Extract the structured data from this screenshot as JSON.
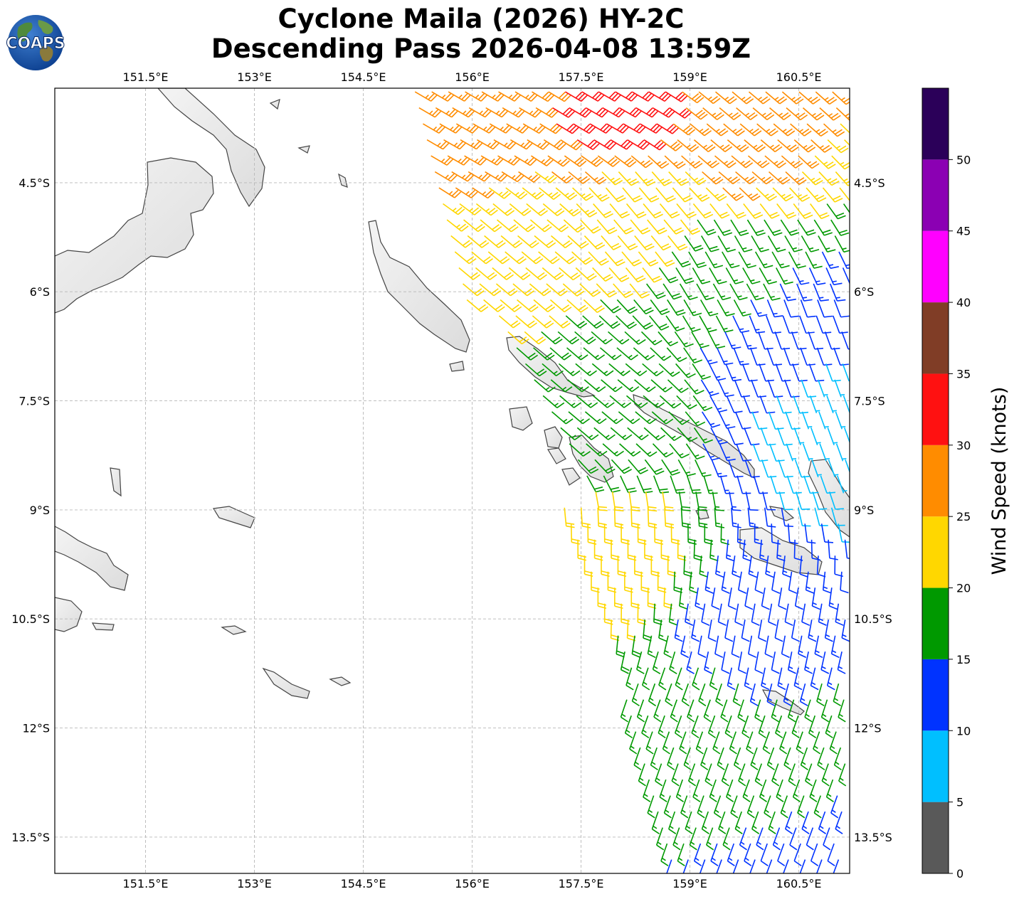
{
  "title": {
    "line1": "Cyclone Maila (2026) HY-2C",
    "line2": "Descending Pass 2026-04-08 13:59Z"
  },
  "logo": {
    "text": "COAPS",
    "icon": "earth-globe-logo"
  },
  "map": {
    "lon_range": [
      150.25,
      161.2
    ],
    "lat_range": [
      -14.0,
      -3.2
    ],
    "lon_ticks": [
      "151.5°E",
      "153°E",
      "154.5°E",
      "156°E",
      "157.5°E",
      "159°E",
      "160.5°E"
    ],
    "lon_tick_values": [
      151.5,
      153,
      154.5,
      156,
      157.5,
      159,
      160.5
    ],
    "lat_ticks": [
      "4.5°S",
      "6°S",
      "7.5°S",
      "9°S",
      "10.5°S",
      "12°S",
      "13.5°S"
    ],
    "lat_tick_values": [
      -4.5,
      -6,
      -7.5,
      -9,
      -10.5,
      -12,
      -13.5
    ],
    "gridlines": true,
    "land_color": "#eeeeee",
    "coast_color": "#444444"
  },
  "colorbar": {
    "label": "Wind Speed (knots)",
    "ticks": [
      "0",
      "5",
      "10",
      "15",
      "20",
      "25",
      "30",
      "35",
      "40",
      "45",
      "50"
    ],
    "bins": [
      {
        "min": 0,
        "max": 5,
        "color": "#595959"
      },
      {
        "min": 5,
        "max": 10,
        "color": "#00bfff"
      },
      {
        "min": 10,
        "max": 15,
        "color": "#0033ff"
      },
      {
        "min": 15,
        "max": 20,
        "color": "#009900"
      },
      {
        "min": 20,
        "max": 25,
        "color": "#ffd700"
      },
      {
        "min": 25,
        "max": 30,
        "color": "#ff8c00"
      },
      {
        "min": 30,
        "max": 35,
        "color": "#ff1111"
      },
      {
        "min": 35,
        "max": 40,
        "color": "#803d26"
      },
      {
        "min": 40,
        "max": 45,
        "color": "#ff00ff"
      },
      {
        "min": 45,
        "max": 50,
        "color": "#8b00b3"
      },
      {
        "min": 50,
        "max": 55,
        "color": "#2b0059"
      }
    ]
  },
  "wind_regions": [
    {
      "lon": 156.0,
      "lat": -3.8,
      "speed": 27,
      "dir": 330
    },
    {
      "lon": 158.0,
      "lat": -3.5,
      "speed": 32,
      "dir": 330
    },
    {
      "lon": 159.5,
      "lat": -3.9,
      "speed": 27,
      "dir": 320
    },
    {
      "lon": 156.5,
      "lat": -5.3,
      "speed": 22,
      "dir": 320
    },
    {
      "lon": 158.3,
      "lat": -4.8,
      "speed": 22,
      "dir": 310
    },
    {
      "lon": 159.5,
      "lat": -5.6,
      "speed": 17,
      "dir": 300
    },
    {
      "lon": 160.3,
      "lat": -6.6,
      "speed": 12,
      "dir": 290
    },
    {
      "lon": 160.9,
      "lat": -7.6,
      "speed": 7,
      "dir": 290
    },
    {
      "lon": 157.8,
      "lat": -7.4,
      "speed": 17,
      "dir": 320
    },
    {
      "lon": 158.0,
      "lat": -9.7,
      "speed": 22,
      "dir": 270
    },
    {
      "lon": 159.6,
      "lat": -10.6,
      "speed": 12,
      "dir": 260
    },
    {
      "lon": 159.0,
      "lat": -11.6,
      "speed": 17,
      "dir": 250
    },
    {
      "lon": 160.2,
      "lat": -12.6,
      "speed": 17,
      "dir": 250
    },
    {
      "lon": 160.6,
      "lat": -13.7,
      "speed": 12,
      "dir": 250
    }
  ]
}
